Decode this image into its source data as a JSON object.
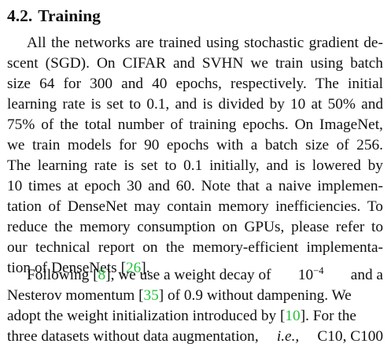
{
  "section": {
    "number": "4.2.",
    "title": "Training"
  },
  "paragraphs": [
    {
      "lines": [
        [
          "All",
          "the",
          "networks",
          "are",
          "trained",
          "using",
          "stochastic",
          "gradient",
          "de-"
        ],
        [
          "scent",
          "(SGD).",
          "On",
          "CIFAR",
          "and",
          "SVHN",
          "we",
          "train",
          "using",
          "batch"
        ],
        [
          "size",
          "64",
          "for",
          "300",
          "and",
          "40",
          "epochs,",
          "respectively.",
          "The",
          "initial"
        ],
        [
          "learning",
          "rate",
          "is",
          "set",
          "to",
          "0.1,",
          "and",
          "is",
          "divided",
          "by",
          "10",
          "at",
          "50%",
          "and"
        ],
        [
          "75%",
          "of",
          "the",
          "total",
          "number",
          "of",
          "training",
          "epochs.",
          "On",
          "ImageNet,"
        ],
        [
          "we",
          "train",
          "models",
          "for",
          "90",
          "epochs",
          "with",
          "a",
          "batch",
          "size",
          "of",
          "256."
        ],
        [
          "The",
          "learning",
          "rate",
          "is",
          "set",
          "to",
          "0.1",
          "initially,",
          "and",
          "is",
          "lowered",
          "by"
        ],
        [
          "10",
          "times",
          "at",
          "epoch",
          "30",
          "and",
          "60.",
          "Note",
          "that",
          "a",
          "naive",
          "implemen-"
        ],
        [
          "tation",
          "of",
          "DenseNet",
          "may",
          "contain",
          "memory",
          "inefficiencies.",
          "To"
        ],
        [
          "reduce",
          "the",
          "memory",
          "consumption",
          "on",
          "GPUs,",
          "please",
          "refer",
          "to"
        ],
        [
          "our",
          "technical",
          "report",
          "on",
          "the",
          "memory-efficient",
          "implementa-"
        ],
        [
          "tion",
          "of",
          "DenseNets",
          "[26]."
        ]
      ]
    },
    {
      "line1_before_cite": "Following [",
      "cite_8": "8",
      "line1_after_cite": "], we use a weight decay of",
      "decay_base": "10",
      "decay_exponent": "−4",
      "line1_end": "and a",
      "line2_before_cite": "Nesterov momentum [",
      "cite_35": "35",
      "line2_after_cite": "] of 0.9 without dampening. We",
      "line3_before_cite": "adopt the weight initialization introduced by [",
      "cite_10": "10",
      "line3_after_cite": "]. For the",
      "line4_text": "three datasets without data augmentation,",
      "line4_italic": "i.e.,",
      "line4_end": "C10, C100"
    }
  ],
  "citation_color": "#23c23a"
}
